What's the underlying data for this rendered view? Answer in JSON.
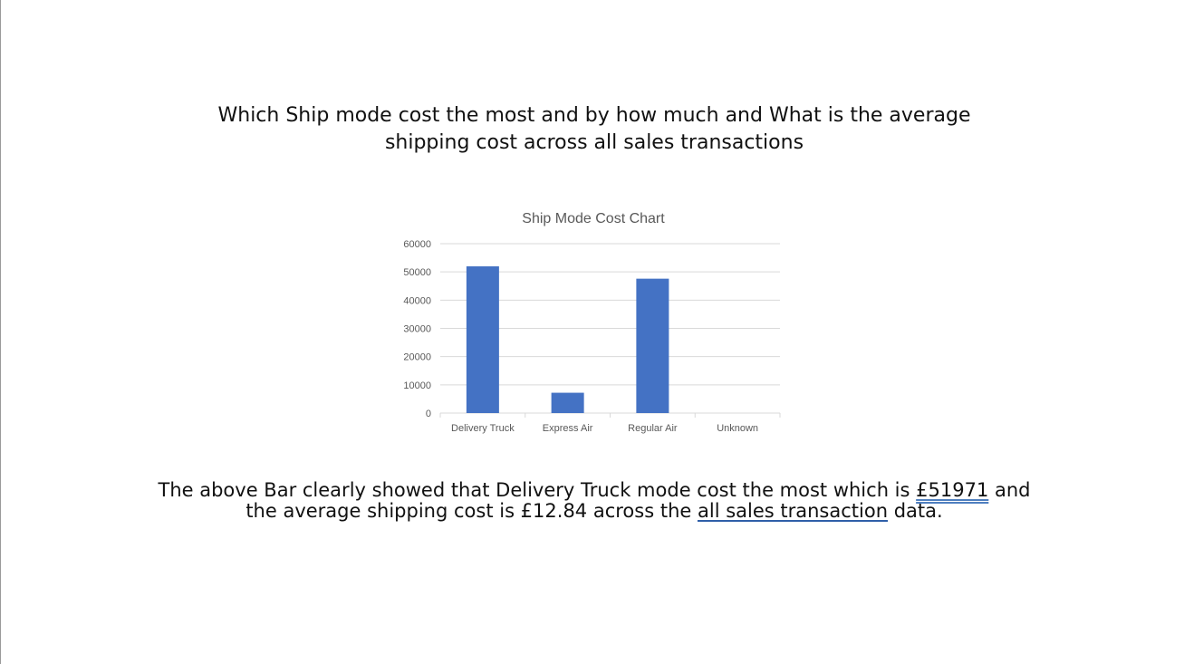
{
  "slide": {
    "title_line1": "Which Ship mode cost the most and by how much and What is the average",
    "title_line2": "shipping cost across all sales transactions",
    "summary": {
      "line1_prefix": "The above Bar clearly showed that Delivery Truck mode cost the most which is ",
      "line1_amount": "£51971",
      "line1_suffix": " and",
      "line2_prefix": "the average shipping cost is £12.84 across the ",
      "line2_link": "all sales transaction",
      "line2_suffix": " data."
    }
  },
  "chart_data": {
    "type": "bar",
    "title": "Ship Mode Cost Chart",
    "categories": [
      "Delivery Truck",
      "Express Air",
      "Regular Air",
      "Unknown"
    ],
    "values": [
      51971,
      7200,
      47600,
      0
    ],
    "ylim": [
      0,
      60000
    ],
    "yticks": [
      "0",
      "10000",
      "20000",
      "30000",
      "40000",
      "50000",
      "60000"
    ],
    "xlabel": "",
    "ylabel": "",
    "grid": true,
    "legend": "none",
    "bar_color": "#4472c4",
    "grid_color": "#d9d9d9",
    "text_color": "#595959"
  }
}
